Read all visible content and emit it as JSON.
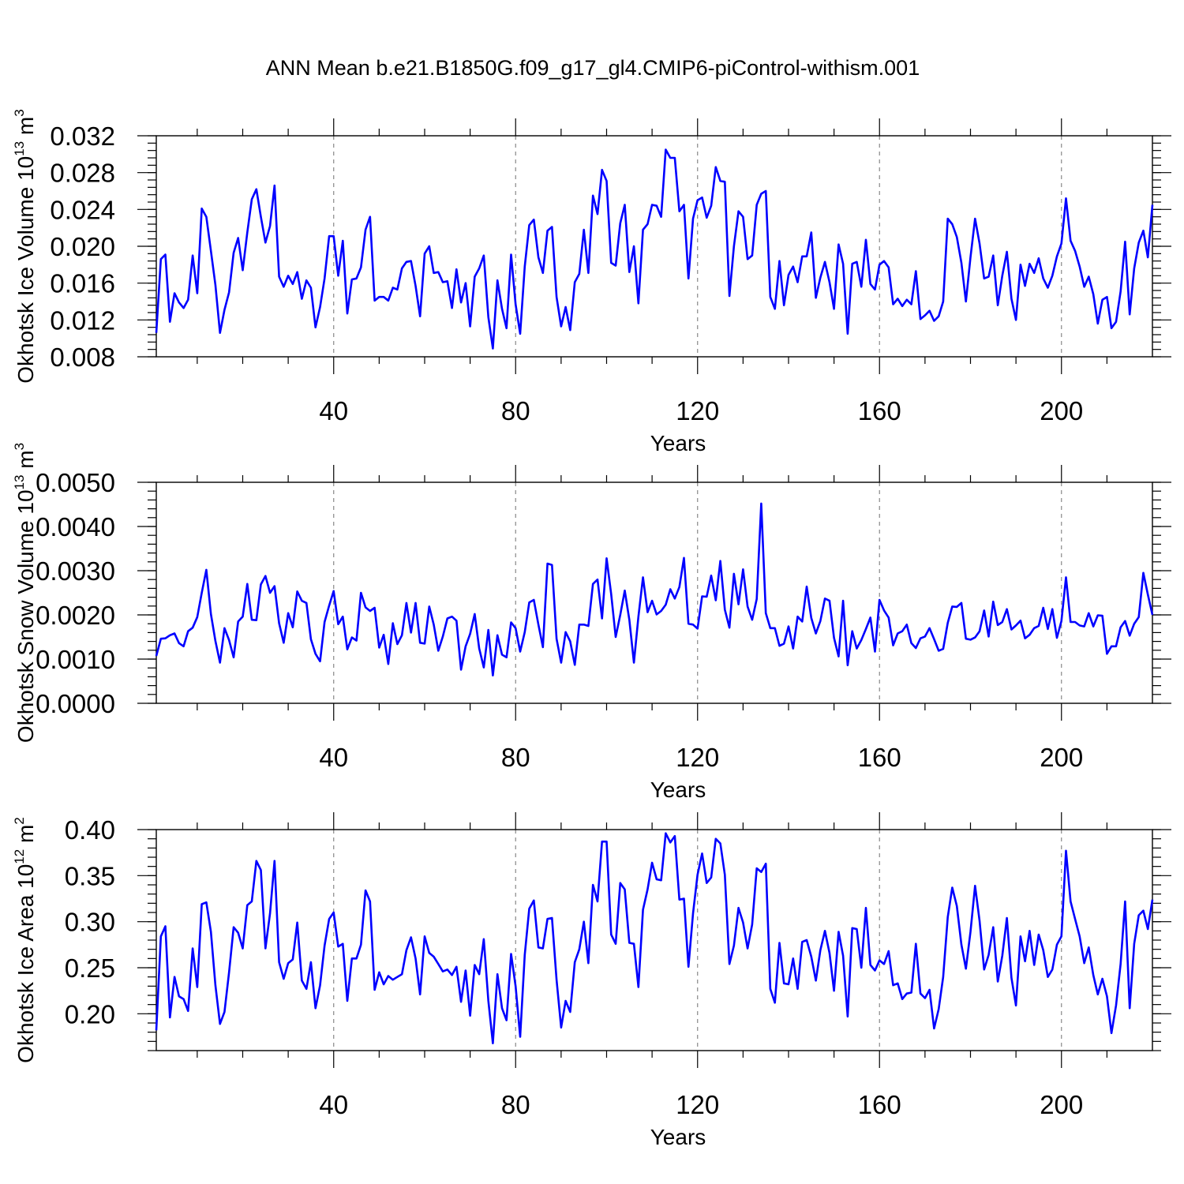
{
  "chart_data": {
    "title": "ANN Mean b.e21.B1850G.f09_g17_gl4.CMIP6-piControl-withism.001",
    "type": "line",
    "panels": [
      {
        "type": "line",
        "ylabel": "Okhotsk Ice Volume 10",
        "ylabel_sup": "13",
        "ylabel_unit": "m",
        "ylabel_unit_sup": "3",
        "xlabel": "Years",
        "xlim": [
          1,
          220
        ],
        "ylim": [
          0.008,
          0.032
        ],
        "yticks": [
          0.008,
          0.012,
          0.016,
          0.02,
          0.024,
          0.028,
          0.032
        ],
        "ytick_labels": [
          "0.008",
          "0.012",
          "0.016",
          "0.020",
          "0.024",
          "0.028",
          "0.032"
        ],
        "xticks": [
          40,
          80,
          120,
          160,
          200
        ],
        "xtick_labels": [
          "40",
          "80",
          "120",
          "160",
          "200"
        ],
        "grid_x": [
          40,
          80,
          120,
          160,
          200
        ],
        "series": [
          {
            "name": "Okhotsk Ice Volume",
            "color": "#0000ff",
            "x_start": 1,
            "values": [
              0.0106,
              0.0186,
              0.0191,
              0.0118,
              0.0149,
              0.0139,
              0.0133,
              0.0142,
              0.019,
              0.0149,
              0.0241,
              0.0232,
              0.0195,
              0.0158,
              0.0106,
              0.0131,
              0.015,
              0.0193,
              0.0209,
              0.0174,
              0.0215,
              0.0251,
              0.0262,
              0.0232,
              0.0204,
              0.0222,
              0.0266,
              0.0167,
              0.0156,
              0.0168,
              0.0159,
              0.0172,
              0.0143,
              0.0163,
              0.0155,
              0.0112,
              0.0134,
              0.0165,
              0.0211,
              0.0211,
              0.0168,
              0.0206,
              0.0127,
              0.0164,
              0.0165,
              0.0177,
              0.0218,
              0.0232,
              0.0141,
              0.0145,
              0.0145,
              0.0141,
              0.0155,
              0.0153,
              0.0176,
              0.0183,
              0.0184,
              0.0157,
              0.0124,
              0.0192,
              0.02,
              0.0171,
              0.0172,
              0.0161,
              0.0162,
              0.0133,
              0.0175,
              0.0139,
              0.016,
              0.0113,
              0.0167,
              0.0176,
              0.019,
              0.0123,
              0.0089,
              0.0163,
              0.0132,
              0.0111,
              0.0191,
              0.0137,
              0.0105,
              0.0178,
              0.0223,
              0.0229,
              0.0188,
              0.0171,
              0.0217,
              0.0221,
              0.0145,
              0.0113,
              0.0134,
              0.0109,
              0.0161,
              0.017,
              0.0218,
              0.0171,
              0.0255,
              0.0235,
              0.0283,
              0.0271,
              0.0182,
              0.0179,
              0.0225,
              0.0245,
              0.0172,
              0.02,
              0.0138,
              0.0218,
              0.0224,
              0.0245,
              0.0244,
              0.0232,
              0.0305,
              0.0296,
              0.0296,
              0.0238,
              0.0245,
              0.0165,
              0.023,
              0.025,
              0.0253,
              0.0231,
              0.0244,
              0.0286,
              0.0271,
              0.027,
              0.0146,
              0.02,
              0.0238,
              0.0232,
              0.0186,
              0.019,
              0.0245,
              0.0257,
              0.026,
              0.0145,
              0.0132,
              0.0184,
              0.0136,
              0.0169,
              0.0178,
              0.0161,
              0.0189,
              0.0189,
              0.0215,
              0.0144,
              0.0166,
              0.0183,
              0.0161,
              0.0132,
              0.0202,
              0.0181,
              0.0105,
              0.0181,
              0.0183,
              0.0156,
              0.0207,
              0.0159,
              0.0153,
              0.018,
              0.0184,
              0.0177,
              0.0137,
              0.0143,
              0.0135,
              0.0142,
              0.0137,
              0.0173,
              0.0121,
              0.0125,
              0.013,
              0.0119,
              0.0124,
              0.014,
              0.023,
              0.0224,
              0.021,
              0.0182,
              0.014,
              0.0188,
              0.023,
              0.0203,
              0.0165,
              0.0167,
              0.019,
              0.0136,
              0.0168,
              0.0194,
              0.0143,
              0.012,
              0.018,
              0.0157,
              0.0181,
              0.0171,
              0.0187,
              0.0165,
              0.0155,
              0.0168,
              0.0189,
              0.0203,
              0.0252,
              0.0206,
              0.0195,
              0.0178,
              0.0156,
              0.0167,
              0.0148,
              0.0116,
              0.0142,
              0.0145,
              0.0111,
              0.0118,
              0.0151,
              0.0205,
              0.0126,
              0.0176,
              0.0204,
              0.0217,
              0.0188,
              0.0245
            ]
          }
        ]
      },
      {
        "type": "line",
        "ylabel": "Okhotsk Snow Volume 10",
        "ylabel_sup": "13",
        "ylabel_unit": "m",
        "ylabel_unit_sup": "3",
        "xlabel": "Years",
        "xlim": [
          1,
          220
        ],
        "ylim": [
          0.0,
          0.005
        ],
        "yticks": [
          0.0,
          0.001,
          0.002,
          0.003,
          0.004,
          0.005
        ],
        "ytick_labels": [
          "0.0000",
          "0.0010",
          "0.0020",
          "0.0030",
          "0.0040",
          "0.0050"
        ],
        "xticks": [
          40,
          80,
          120,
          160,
          200
        ],
        "xtick_labels": [
          "40",
          "80",
          "120",
          "160",
          "200"
        ],
        "grid_x": [
          40,
          80,
          120,
          160,
          200
        ],
        "series": [
          {
            "name": "Okhotsk Snow Volume",
            "color": "#0000ff",
            "x_start": 1,
            "values": [
              0.00107,
              0.00146,
              0.00147,
              0.00154,
              0.00158,
              0.00136,
              0.00129,
              0.00163,
              0.00171,
              0.00195,
              0.0025,
              0.00302,
              0.00202,
              0.00141,
              0.00092,
              0.0017,
              0.00143,
              0.00104,
              0.00185,
              0.00196,
              0.0027,
              0.00189,
              0.00188,
              0.00269,
              0.00288,
              0.0025,
              0.00265,
              0.00181,
              0.00137,
              0.00204,
              0.00172,
              0.00253,
              0.00232,
              0.00227,
              0.00145,
              0.00112,
              0.00095,
              0.00184,
              0.00221,
              0.00254,
              0.00179,
              0.00196,
              0.00122,
              0.00149,
              0.00142,
              0.0025,
              0.00217,
              0.00209,
              0.00216,
              0.00126,
              0.00155,
              0.00089,
              0.00181,
              0.00134,
              0.00154,
              0.00227,
              0.0016,
              0.00227,
              0.00137,
              0.00135,
              0.00219,
              0.00178,
              0.00119,
              0.00151,
              0.00192,
              0.00196,
              0.00187,
              0.00076,
              0.00129,
              0.00157,
              0.00202,
              0.00124,
              0.00081,
              0.00166,
              0.00063,
              0.00154,
              0.0011,
              0.00104,
              0.00183,
              0.0017,
              0.00117,
              0.00161,
              0.00228,
              0.00234,
              0.00178,
              0.00127,
              0.00316,
              0.00313,
              0.00146,
              0.00092,
              0.00161,
              0.0014,
              0.00087,
              0.00178,
              0.00178,
              0.00175,
              0.0027,
              0.0028,
              0.00192,
              0.00328,
              0.00247,
              0.0015,
              0.002,
              0.00255,
              0.00189,
              0.00092,
              0.00196,
              0.00285,
              0.00206,
              0.00232,
              0.00201,
              0.00209,
              0.00223,
              0.00258,
              0.00237,
              0.00263,
              0.00329,
              0.0018,
              0.00178,
              0.00169,
              0.00242,
              0.00241,
              0.00289,
              0.00233,
              0.00322,
              0.00212,
              0.00171,
              0.00293,
              0.00224,
              0.00303,
              0.00219,
              0.00189,
              0.00236,
              0.00452,
              0.00204,
              0.0017,
              0.0017,
              0.0013,
              0.00135,
              0.00174,
              0.00124,
              0.00196,
              0.00185,
              0.00264,
              0.00193,
              0.00158,
              0.00186,
              0.00237,
              0.00232,
              0.00148,
              0.00106,
              0.00232,
              0.00086,
              0.00163,
              0.00124,
              0.00143,
              0.00168,
              0.00194,
              0.00117,
              0.00234,
              0.0021,
              0.00194,
              0.00131,
              0.00158,
              0.00163,
              0.00178,
              0.00136,
              0.00125,
              0.00147,
              0.00151,
              0.0017,
              0.00145,
              0.00119,
              0.00123,
              0.00182,
              0.00219,
              0.00218,
              0.00227,
              0.00146,
              0.00144,
              0.00149,
              0.00163,
              0.0021,
              0.00151,
              0.0023,
              0.00177,
              0.00184,
              0.00213,
              0.00167,
              0.00176,
              0.00187,
              0.00147,
              0.00155,
              0.0017,
              0.00175,
              0.00216,
              0.00168,
              0.00213,
              0.00148,
              0.00186,
              0.00285,
              0.00184,
              0.00184,
              0.00176,
              0.00174,
              0.00204,
              0.00174,
              0.00199,
              0.00198,
              0.00112,
              0.00129,
              0.00129,
              0.00172,
              0.00186,
              0.00153,
              0.0018,
              0.00195,
              0.00295,
              0.00246,
              0.002
            ]
          }
        ]
      },
      {
        "type": "line",
        "ylabel": "Okhotsk Ice Area 10",
        "ylabel_sup": "12",
        "ylabel_unit": "m",
        "ylabel_unit_sup": "2",
        "xlabel": "Years",
        "xlim": [
          1,
          220
        ],
        "ylim": [
          0.16,
          0.4
        ],
        "yticks": [
          0.2,
          0.25,
          0.3,
          0.35,
          0.4
        ],
        "ytick_labels": [
          "0.20",
          "0.25",
          "0.30",
          "0.35",
          "0.40"
        ],
        "xticks": [
          40,
          80,
          120,
          160,
          200
        ],
        "xtick_labels": [
          "40",
          "80",
          "120",
          "160",
          "200"
        ],
        "grid_x": [
          40,
          80,
          120,
          160,
          200
        ],
        "series": [
          {
            "name": "Okhotsk Ice Area",
            "color": "#0000ff",
            "x_start": 1,
            "values": [
              0.182,
              0.284,
              0.295,
              0.196,
              0.24,
              0.219,
              0.216,
              0.203,
              0.271,
              0.229,
              0.319,
              0.321,
              0.289,
              0.231,
              0.189,
              0.202,
              0.245,
              0.294,
              0.288,
              0.271,
              0.318,
              0.322,
              0.366,
              0.356,
              0.271,
              0.309,
              0.366,
              0.256,
              0.238,
              0.255,
              0.259,
              0.299,
              0.236,
              0.227,
              0.256,
              0.206,
              0.231,
              0.274,
              0.303,
              0.31,
              0.273,
              0.276,
              0.214,
              0.26,
              0.26,
              0.275,
              0.334,
              0.322,
              0.226,
              0.245,
              0.232,
              0.241,
              0.237,
              0.24,
              0.243,
              0.269,
              0.283,
              0.26,
              0.221,
              0.284,
              0.266,
              0.262,
              0.254,
              0.246,
              0.248,
              0.242,
              0.251,
              0.213,
              0.247,
              0.198,
              0.253,
              0.243,
              0.281,
              0.214,
              0.168,
              0.243,
              0.206,
              0.193,
              0.265,
              0.23,
              0.175,
              0.264,
              0.314,
              0.323,
              0.272,
              0.271,
              0.303,
              0.304,
              0.237,
              0.185,
              0.214,
              0.202,
              0.256,
              0.27,
              0.3,
              0.255,
              0.34,
              0.322,
              0.387,
              0.387,
              0.286,
              0.276,
              0.342,
              0.335,
              0.277,
              0.276,
              0.229,
              0.313,
              0.335,
              0.364,
              0.346,
              0.345,
              0.396,
              0.386,
              0.393,
              0.324,
              0.325,
              0.251,
              0.309,
              0.351,
              0.374,
              0.342,
              0.348,
              0.39,
              0.385,
              0.351,
              0.254,
              0.274,
              0.315,
              0.299,
              0.271,
              0.297,
              0.358,
              0.354,
              0.363,
              0.227,
              0.212,
              0.277,
              0.233,
              0.232,
              0.26,
              0.227,
              0.278,
              0.28,
              0.262,
              0.236,
              0.269,
              0.29,
              0.266,
              0.225,
              0.289,
              0.263,
              0.197,
              0.293,
              0.292,
              0.25,
              0.315,
              0.253,
              0.247,
              0.258,
              0.254,
              0.268,
              0.231,
              0.233,
              0.216,
              0.222,
              0.223,
              0.276,
              0.222,
              0.217,
              0.226,
              0.184,
              0.205,
              0.24,
              0.305,
              0.337,
              0.317,
              0.275,
              0.249,
              0.289,
              0.339,
              0.301,
              0.248,
              0.264,
              0.294,
              0.235,
              0.263,
              0.304,
              0.239,
              0.209,
              0.284,
              0.257,
              0.29,
              0.253,
              0.286,
              0.269,
              0.24,
              0.248,
              0.275,
              0.284,
              0.377,
              0.322,
              0.303,
              0.284,
              0.255,
              0.272,
              0.242,
              0.221,
              0.238,
              0.219,
              0.179,
              0.209,
              0.254,
              0.322,
              0.206,
              0.276,
              0.307,
              0.312,
              0.292,
              0.324
            ]
          }
        ]
      }
    ]
  }
}
